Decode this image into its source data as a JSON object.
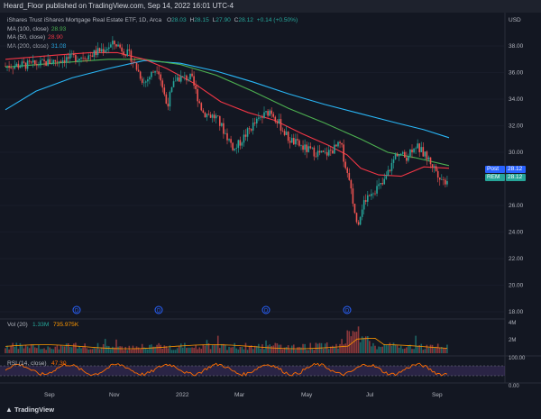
{
  "header": {
    "publisher": "Heard_Floor published on TradingView.com, Sep 14, 2022 16:01 UTC-4"
  },
  "symbol": {
    "title": "iShares Trust iShares Mortgage Real Estate ETF, 1D, Arca",
    "o_label": "O",
    "o": "28.03",
    "h_label": "H",
    "h": "28.15",
    "l_label": "L",
    "l": "27.90",
    "c_label": "C",
    "c": "28.12",
    "change": "+0.14 (+0.50%)"
  },
  "indicators": [
    {
      "label": "MA (100, close)",
      "value": "28.93",
      "color": "#4caf50"
    },
    {
      "label": "MA (50, close)",
      "value": "28.90",
      "color": "#f23645"
    },
    {
      "label": "MA (200, close)",
      "value": "31.08",
      "color": "#29b6f6"
    }
  ],
  "price_axis": {
    "currency": "USD",
    "ticks": [
      "38.00",
      "36.00",
      "34.00",
      "32.00",
      "30.00",
      "28.00",
      "26.00",
      "24.00",
      "22.00",
      "20.00",
      "18.00"
    ]
  },
  "price_tags": [
    {
      "label": "Post",
      "value": "28.12",
      "color": "#2962ff"
    },
    {
      "label": "REM",
      "value": "28.12",
      "color": "#26a69a"
    }
  ],
  "dividend_marker": "D",
  "volume": {
    "title": "Vol (20)",
    "v1": "1.33M",
    "v2": "735.975K",
    "axis": [
      "4M",
      "2M"
    ]
  },
  "rsi": {
    "title": "RSI (14, close)",
    "value": "47.30",
    "axis": [
      "100.00",
      "0.00"
    ]
  },
  "time_axis": [
    "Sep",
    "Nov",
    "2022",
    "Mar",
    "May",
    "Jul",
    "Sep"
  ],
  "footer": {
    "brand": "TradingView"
  },
  "colors": {
    "up": "#26a69a",
    "down": "#ef5350",
    "bg": "#131722",
    "rsi": "#ff6d00",
    "rsi_band": "#7e57c2"
  }
}
